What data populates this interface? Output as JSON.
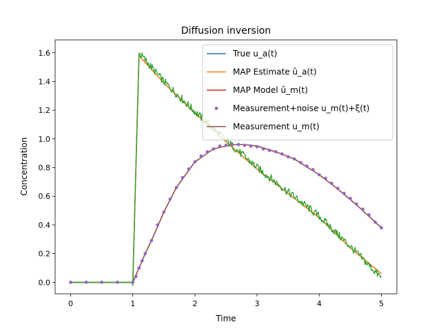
{
  "chart_data": {
    "type": "line",
    "title": "Diffusion inversion",
    "xlabel": "Time",
    "ylabel": "Concentration",
    "xlim": [
      -0.25,
      5.25
    ],
    "ylim": [
      -0.08,
      1.69
    ],
    "xticks": [
      0,
      1,
      2,
      3,
      4,
      5
    ],
    "yticks": [
      0.0,
      0.2,
      0.4,
      0.6,
      0.8,
      1.0,
      1.2,
      1.4,
      1.6
    ],
    "xtick_labels": [
      "0",
      "1",
      "2",
      "3",
      "4",
      "5"
    ],
    "ytick_labels": [
      "0.0",
      "0.2",
      "0.4",
      "0.6",
      "0.8",
      "1.0",
      "1.2",
      "1.4",
      "1.6"
    ],
    "legend_position": "top-right",
    "grid": false,
    "series": [
      {
        "name": "True $u_a(t)$",
        "legend_text": "True u_a(t)",
        "style": "line",
        "color": "#1f77b4",
        "x": [
          0,
          1.0,
          1.1,
          1.5,
          2.0,
          2.5,
          3.0,
          3.5,
          4.0,
          4.5,
          5.0
        ],
        "y": [
          0,
          0,
          1.58,
          1.39,
          1.18,
          0.98,
          0.79,
          0.62,
          0.45,
          0.24,
          0.06
        ]
      },
      {
        "name": "MAP Estimate $\\hat{u}_a(t)$",
        "legend_text": "MAP Estimate û_a(t)",
        "style": "line",
        "color": "#ff7f0e",
        "x": [
          0,
          1.0,
          1.1,
          1.5,
          2.0,
          2.5,
          3.0,
          3.5,
          4.0,
          4.5,
          5.0
        ],
        "y": [
          0,
          0,
          1.58,
          1.39,
          1.18,
          0.98,
          0.79,
          0.62,
          0.45,
          0.24,
          0.06
        ]
      },
      {
        "name": "MAP Model $\\hat{u}_m(t)$",
        "legend_text": "MAP Model û_m(t)",
        "style": "line",
        "color": "#d62728",
        "x": [
          0,
          1.0,
          1.1,
          1.2,
          1.3,
          1.5,
          1.7,
          2.0,
          2.3,
          2.6,
          2.8,
          3.0,
          3.3,
          3.6,
          4.0,
          4.3,
          4.6,
          5.0
        ],
        "y": [
          0,
          0,
          0.1,
          0.2,
          0.29,
          0.49,
          0.66,
          0.84,
          0.93,
          0.96,
          0.96,
          0.95,
          0.91,
          0.86,
          0.75,
          0.65,
          0.54,
          0.38
        ]
      },
      {
        "name": "Measurement+noise $u_m(t)+\\xi(t)$",
        "legend_text": "Measurement+noise u_m(t)+ξ(t)",
        "style": "scatter",
        "color": "#9467bd",
        "x": [
          0,
          0.25,
          0.5,
          0.75,
          1.0,
          1.05,
          1.1,
          1.15,
          1.2,
          1.3,
          1.4,
          1.5,
          1.6,
          1.7,
          1.8,
          1.9,
          2.0,
          2.1,
          2.2,
          2.3,
          2.4,
          2.5,
          2.6,
          2.7,
          2.8,
          2.9,
          3.0,
          3.1,
          3.2,
          3.3,
          3.4,
          3.5,
          3.6,
          3.7,
          3.8,
          3.9,
          4.0,
          4.1,
          4.2,
          4.3,
          4.4,
          4.5,
          4.6,
          4.7,
          4.8,
          4.9,
          5.0
        ],
        "y": [
          0,
          0,
          0,
          0,
          0,
          0.04,
          0.1,
          0.15,
          0.2,
          0.29,
          0.4,
          0.49,
          0.58,
          0.66,
          0.73,
          0.79,
          0.84,
          0.88,
          0.91,
          0.93,
          0.95,
          0.955,
          0.96,
          0.96,
          0.955,
          0.95,
          0.945,
          0.93,
          0.92,
          0.91,
          0.895,
          0.875,
          0.86,
          0.835,
          0.81,
          0.785,
          0.75,
          0.725,
          0.69,
          0.655,
          0.62,
          0.585,
          0.545,
          0.51,
          0.47,
          0.42,
          0.38
        ]
      },
      {
        "name": "Measurement $u_m(t)$",
        "legend_text": "Measurement u_m(t)",
        "style": "line",
        "color": "#8c564b",
        "x": [
          0,
          1.0,
          1.1,
          1.2,
          1.3,
          1.5,
          1.7,
          2.0,
          2.3,
          2.6,
          2.8,
          3.0,
          3.3,
          3.6,
          4.0,
          4.3,
          4.6,
          5.0
        ],
        "y": [
          0,
          0,
          0.1,
          0.2,
          0.29,
          0.49,
          0.66,
          0.84,
          0.93,
          0.96,
          0.96,
          0.95,
          0.91,
          0.86,
          0.75,
          0.65,
          0.54,
          0.38
        ]
      },
      {
        "name": "",
        "style": "line",
        "color": "#2ca02c",
        "x": [
          0,
          1.0,
          1.1,
          1.5,
          2.0,
          2.5,
          3.0,
          3.5,
          4.0,
          4.5,
          5.0
        ],
        "y": [
          0,
          0,
          1.6,
          1.4,
          1.19,
          0.99,
          0.8,
          0.63,
          0.46,
          0.25,
          0.03
        ]
      }
    ]
  }
}
